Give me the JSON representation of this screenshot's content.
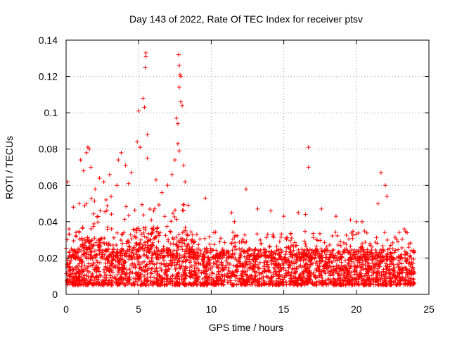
{
  "chart_data": {
    "type": "scatter",
    "title": "Day 143 of 2022, Rate Of TEC Index for receiver ptsv",
    "xlabel": "GPS time / hours",
    "ylabel": "ROTI / TECUs",
    "xlim": [
      0,
      25
    ],
    "ylim": [
      0,
      0.14
    ],
    "x_ticks": [
      0,
      5,
      10,
      15,
      20,
      25
    ],
    "y_ticks": [
      0,
      0.02,
      0.04,
      0.06,
      0.08,
      0.1,
      0.12,
      0.14
    ],
    "x_tick_labels": [
      "0",
      "5",
      "10",
      "15",
      "20",
      "25"
    ],
    "y_tick_labels": [
      "0",
      "0.02",
      "0.04",
      "0.06",
      "0.08",
      "0.1",
      "0.12",
      "0.14"
    ],
    "grid": true,
    "marker": "+",
    "color": "#ff0000",
    "series": [
      {
        "x_range": [
          0,
          24
        ],
        "typical_band": [
          0.005,
          0.025
        ],
        "points": [
          [
            0.1,
            0.062
          ],
          [
            0.2,
            0.036
          ],
          [
            0.5,
            0.048
          ],
          [
            0.9,
            0.05
          ],
          [
            1.0,
            0.074
          ],
          [
            1.2,
            0.068
          ],
          [
            1.4,
            0.078
          ],
          [
            1.5,
            0.081
          ],
          [
            1.6,
            0.08
          ],
          [
            1.7,
            0.07
          ],
          [
            2.0,
            0.058
          ],
          [
            2.3,
            0.064
          ],
          [
            2.6,
            0.062
          ],
          [
            3.0,
            0.066
          ],
          [
            3.5,
            0.06
          ],
          [
            3.6,
            0.074
          ],
          [
            3.8,
            0.078
          ],
          [
            4.1,
            0.071
          ],
          [
            4.3,
            0.061
          ],
          [
            4.5,
            0.067
          ],
          [
            4.9,
            0.084
          ],
          [
            5.0,
            0.101
          ],
          [
            5.1,
            0.081
          ],
          [
            5.3,
            0.108
          ],
          [
            5.4,
            0.103
          ],
          [
            5.5,
            0.131
          ],
          [
            5.5,
            0.133
          ],
          [
            5.45,
            0.125
          ],
          [
            5.6,
            0.088
          ],
          [
            5.6,
            0.075
          ],
          [
            6.2,
            0.063
          ],
          [
            6.6,
            0.056
          ],
          [
            7.0,
            0.06
          ],
          [
            7.3,
            0.066
          ],
          [
            7.5,
            0.074
          ],
          [
            7.6,
            0.097
          ],
          [
            7.7,
            0.094
          ],
          [
            7.75,
            0.132
          ],
          [
            7.8,
            0.126
          ],
          [
            7.85,
            0.121
          ],
          [
            7.9,
            0.12
          ],
          [
            7.8,
            0.114
          ],
          [
            7.9,
            0.106
          ],
          [
            8.0,
            0.104
          ],
          [
            7.7,
            0.083
          ],
          [
            7.8,
            0.079
          ],
          [
            8.1,
            0.071
          ],
          [
            8.2,
            0.062
          ],
          [
            9.6,
            0.053
          ],
          [
            11.4,
            0.045
          ],
          [
            11.6,
            0.04
          ],
          [
            12.4,
            0.058
          ],
          [
            13.2,
            0.047
          ],
          [
            14.1,
            0.046
          ],
          [
            15.0,
            0.043
          ],
          [
            16.0,
            0.045
          ],
          [
            16.5,
            0.044
          ],
          [
            16.7,
            0.081
          ],
          [
            16.7,
            0.07
          ],
          [
            17.6,
            0.047
          ],
          [
            18.6,
            0.043
          ],
          [
            19.6,
            0.041
          ],
          [
            20.0,
            0.04
          ],
          [
            20.4,
            0.04
          ],
          [
            21.5,
            0.05
          ],
          [
            21.7,
            0.067
          ],
          [
            22.0,
            0.06
          ],
          [
            22.1,
            0.054
          ],
          [
            23.3,
            0.036
          ],
          [
            23.5,
            0.034
          ],
          [
            23.9,
            0.017
          ],
          [
            24.0,
            0.012
          ]
        ]
      }
    ]
  }
}
